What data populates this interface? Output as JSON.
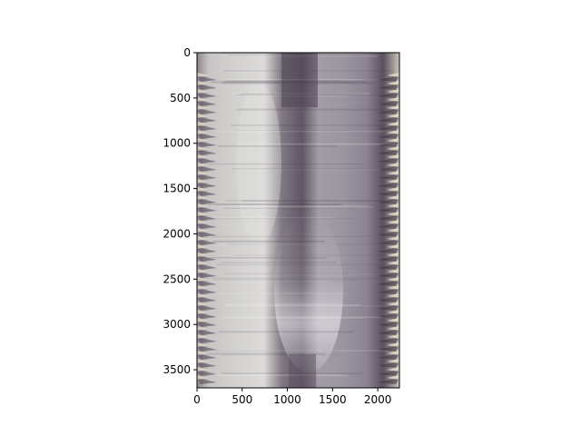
{
  "figure": {
    "background": "#ffffff",
    "axes_color": "#000000",
    "image": {
      "description_icon": "scan-image",
      "palette": {
        "bright": "#e9e8e6",
        "light": "#c9c7c7",
        "mid": "#a9a5a9",
        "dark": "#6d6670",
        "darker": "#4e4652",
        "cream": "#e6e2cf"
      }
    }
  },
  "chart_data": {
    "type": "heatmap",
    "title": "",
    "xlabel": "",
    "ylabel": "",
    "xlim": [
      0,
      2240
    ],
    "ylim": [
      3700,
      0
    ],
    "grid": false,
    "x_ticks": [
      {
        "value": 0,
        "label": "0"
      },
      {
        "value": 500,
        "label": "500"
      },
      {
        "value": 1000,
        "label": "1000"
      },
      {
        "value": 1500,
        "label": "1500"
      },
      {
        "value": 2000,
        "label": "2000"
      }
    ],
    "y_ticks": [
      {
        "value": 0,
        "label": "0"
      },
      {
        "value": 500,
        "label": "500"
      },
      {
        "value": 1000,
        "label": "1000"
      },
      {
        "value": 1500,
        "label": "1500"
      },
      {
        "value": 2000,
        "label": "2000"
      },
      {
        "value": 2500,
        "label": "2500"
      },
      {
        "value": 3000,
        "label": "3000"
      },
      {
        "value": 3500,
        "label": "3500"
      }
    ]
  }
}
